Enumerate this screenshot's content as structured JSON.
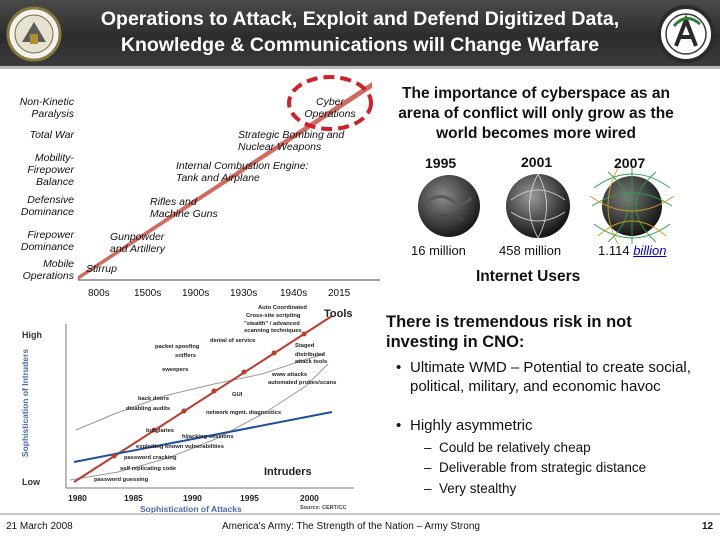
{
  "header": {
    "title_line1": "Operations to Attack, Exploit and Defend Digitized Data,",
    "title_line2": "Knowledge & Communications will Change Warfare"
  },
  "timeline": {
    "left_labels": [
      "Non-Kinetic Paralysis",
      "Total War",
      "Mobility-Firepower Balance",
      "Defensive Dominance",
      "Firepower Dominance",
      "Mobile Operations"
    ],
    "eras": [
      {
        "label": "Stirrup",
        "year": "800s"
      },
      {
        "label": "Gunpowder and Artillery",
        "year": "1500s"
      },
      {
        "label": "Rifles and Machine Guns",
        "year": "1900s"
      },
      {
        "label": "Internal Combustion Engine: Tank and Airplane",
        "year": "1930s"
      },
      {
        "label": "Strategic Bombing and Nuclear Weapons",
        "year": "1940s"
      },
      {
        "label": "Cyber Operations",
        "year": "2015"
      }
    ]
  },
  "cyberspace": {
    "heading": "The importance of cyberspace as an arena of conflict will only grow as the world becomes more wired",
    "globes": [
      {
        "year": "1995",
        "users": "16 million"
      },
      {
        "year": "2001",
        "users": "458 million"
      },
      {
        "year": "2007",
        "users_number": "1.114",
        "users_unit": "billion"
      }
    ],
    "caption": "Internet Users"
  },
  "intruder_chart": {
    "tools_label": "Tools",
    "intruders_label": "Intruders",
    "y_axis": "Sophistication of Intruders",
    "high": "High",
    "low": "Low",
    "x_ticks": [
      "1980",
      "1985",
      "1990",
      "1995",
      "2000"
    ],
    "x_title": "Sophistication of Attacks",
    "tools": [
      "Auto Coordinated",
      "Cross-site scripting",
      "\"stealth\" / advanced scanning techniques",
      "packet spoofing",
      "denial of service",
      "sniffers",
      "Staged",
      "distributed attack tools",
      "sweepers",
      "www attacks",
      "automated probes/scans",
      "back doors",
      "GUI",
      "disabling audits",
      "network mgmt. diagnostics",
      "burglaries",
      "hijacking sessions",
      "exploiting known vulnerabilities",
      "password cracking",
      "self replicating code",
      "password guessing"
    ],
    "credit": "Source: CERT/CC"
  },
  "risk": {
    "heading": "There is tremendous risk in not investing in CNO:",
    "bullets": [
      "Ultimate WMD – Potential to create social, political, military, and economic havoc",
      "Highly asymmetric"
    ],
    "sub_bullets": [
      "Could be relatively cheap",
      "Deliverable from strategic distance",
      "Very stealthy"
    ]
  },
  "footer": {
    "date": "21 March 2008",
    "motto": "America's Army: The Strength of the Nation – Army Strong",
    "page": "12"
  },
  "colors": {
    "header_bg": "#333333",
    "trend_line": "#c0392b",
    "cyber_circle": "#d0202a",
    "link_blue": "#0000cc"
  }
}
